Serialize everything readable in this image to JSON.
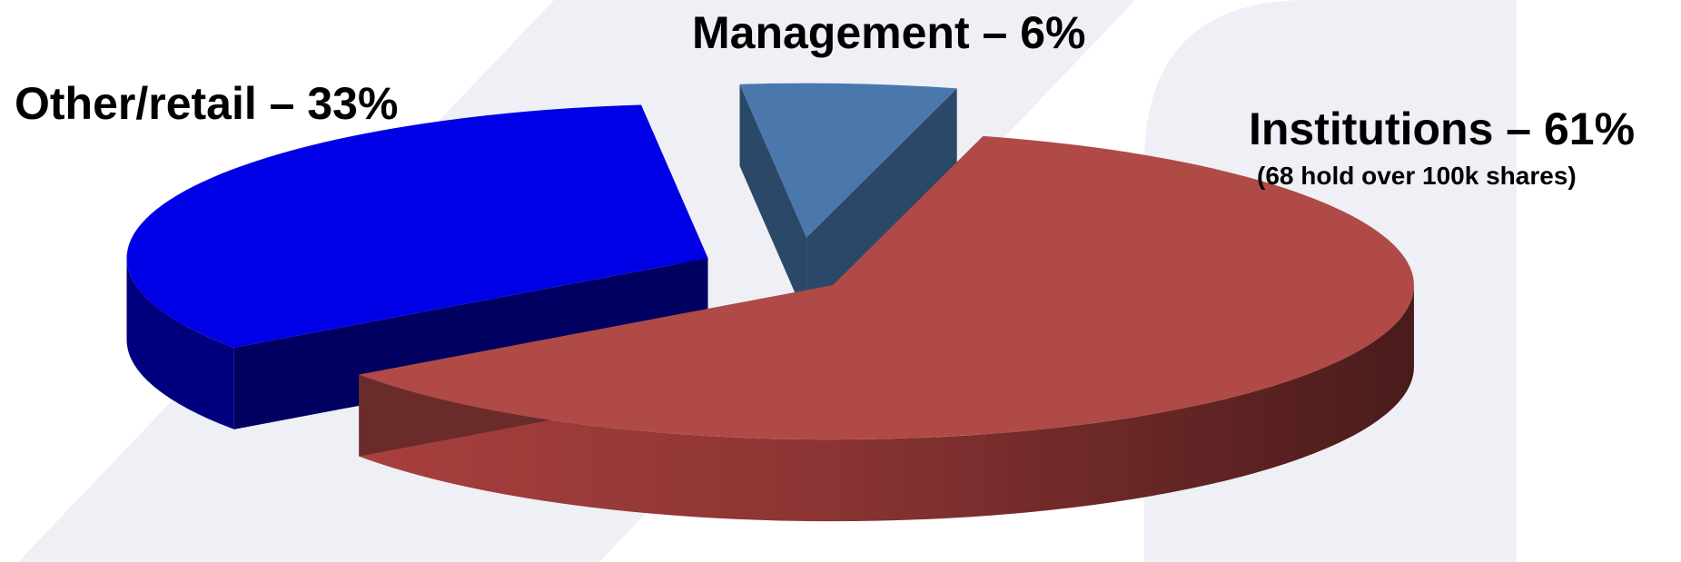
{
  "chart_data": {
    "type": "pie",
    "style": "3d-exploded",
    "unit": "%",
    "slices": [
      {
        "label": "Institutions – 61%",
        "category": "Institutions",
        "value": 61,
        "note": "(68 hold over 100k shares)",
        "color": "#b04a47"
      },
      {
        "label": "Other/retail – 33%",
        "category": "Other/retail",
        "value": 33,
        "color": "#0000e6"
      },
      {
        "label": "Management – 6%",
        "category": "Management",
        "value": 6,
        "color": "#4a78ad"
      }
    ],
    "legend": "none"
  },
  "background": {
    "stripe_color": "#efeff6"
  }
}
